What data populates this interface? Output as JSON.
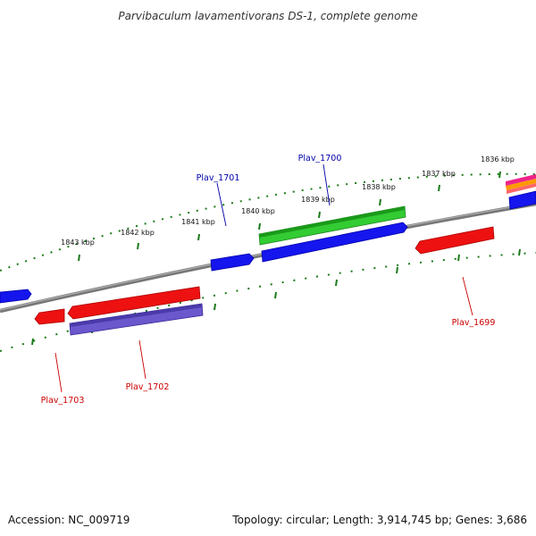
{
  "title": "Parvibaculum lavamentivorans DS-1, complete genome",
  "footer": {
    "accession": "Accession: NC_009719",
    "summary": "Topology: circular; Length: 3,914,745 bp; Genes: 3,686"
  },
  "colors": {
    "backbone": "#808080",
    "tick": "#1a7a1a",
    "forward_gene": "#0000ee",
    "reverse_gene": "#ee0000",
    "cds_green": "#33cc33",
    "cds_purple": "#6655cc",
    "label_forward": "#0000aa",
    "label_reverse": "#cc0000"
  },
  "ticks": {
    "unit": "kbp",
    "labels": [
      "1836 kbp",
      "1837 kbp",
      "1838 kbp",
      "1839 kbp",
      "1840 kbp",
      "1841 kbp",
      "1842 kbp",
      "1843 kbp"
    ]
  },
  "gene_labels": {
    "plav_1699": "Plav_1699",
    "plav_1700": "Plav_1700",
    "plav_1701": "Plav_1701",
    "plav_1702": "Plav_1702",
    "plav_1703": "Plav_1703"
  }
}
